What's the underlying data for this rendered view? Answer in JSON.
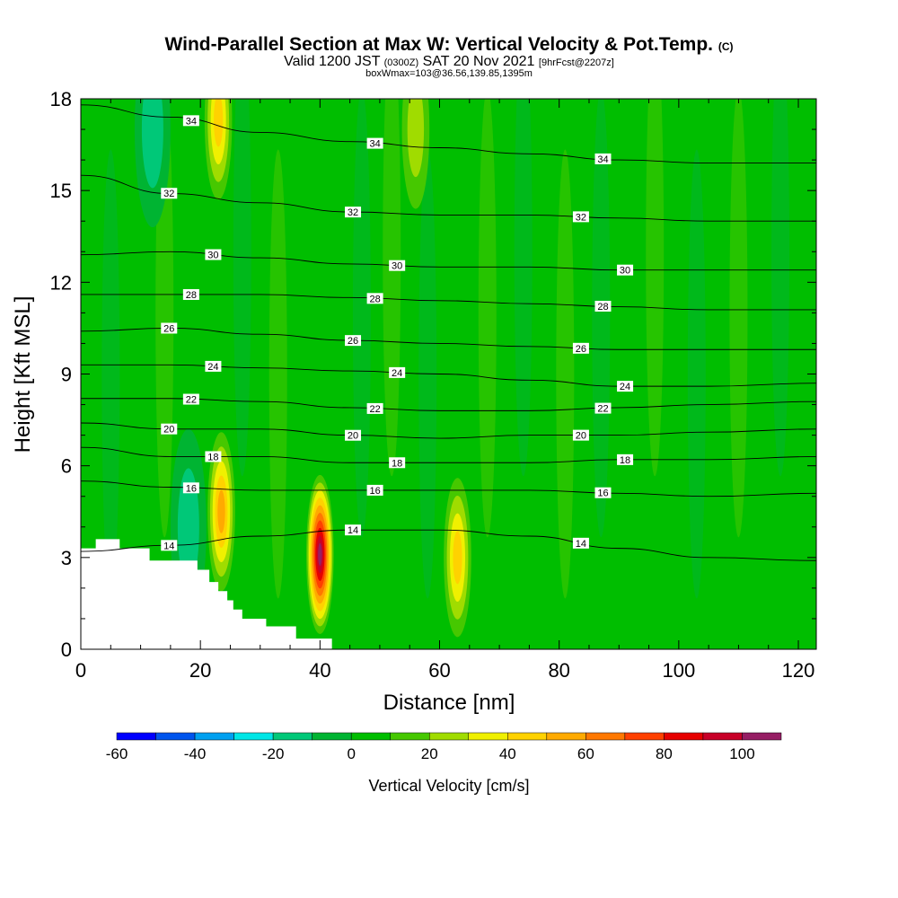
{
  "header": {
    "title": "Wind-Parallel Section at Max W: Vertical Velocity & Pot.Temp.",
    "title_units": "(C)",
    "valid_prefix": "Valid 1200 JST",
    "valid_z": "(0300Z)",
    "valid_date": "SAT 20 Nov 2021",
    "forecast": "[9hrFcst@2207z]",
    "box_info": "boxWmax=103@36.56,139.85,1395m"
  },
  "chart_data": {
    "type": "heatmap",
    "xlabel": "Distance [nm]",
    "ylabel": "Height [Kft MSL]",
    "xlim": [
      0,
      123
    ],
    "ylim": [
      0,
      18
    ],
    "x_ticks": [
      "0",
      "20",
      "40",
      "60",
      "80",
      "100",
      "120"
    ],
    "y_ticks": [
      "0",
      "3",
      "6",
      "9",
      "12",
      "15",
      "18"
    ],
    "grid": false,
    "colorbar": {
      "label": "Vertical Velocity [cm/s]",
      "tick_labels": [
        "-60",
        "-40",
        "-20",
        "0",
        "20",
        "40",
        "60",
        "80",
        "100"
      ],
      "bins": [
        -60,
        -50,
        -40,
        -30,
        -20,
        -10,
        0,
        10,
        20,
        30,
        40,
        50,
        60,
        70,
        80,
        90,
        100,
        110
      ],
      "colors": [
        "#0000ff",
        "#0055ee",
        "#00a0f0",
        "#00e6e6",
        "#00c878",
        "#00b432",
        "#00be00",
        "#46c800",
        "#a0dc00",
        "#f0f000",
        "#ffd200",
        "#ffaa00",
        "#ff7800",
        "#ff4000",
        "#e60000",
        "#c80028",
        "#961e64",
        "#5a0a8c"
      ]
    },
    "background_value": 5,
    "features": [
      {
        "x": 40.0,
        "y": 3.1,
        "max_w": 103
      },
      {
        "x": 23.5,
        "y": 4.5,
        "max_w": 45
      },
      {
        "x": 23.0,
        "y": 17.3,
        "max_w": 35
      },
      {
        "x": 63.0,
        "y": 3.0,
        "max_w": 40
      },
      {
        "x": 56.0,
        "y": 17.0,
        "max_w": 20
      },
      {
        "x": 12.0,
        "y": 17.0,
        "max_w": -20
      },
      {
        "x": 18.0,
        "y": 4.0,
        "max_w": -20
      }
    ],
    "terrain": [
      [
        0,
        3.3
      ],
      [
        2.5,
        3.3
      ],
      [
        2.5,
        3.6
      ],
      [
        6.5,
        3.6
      ],
      [
        6.5,
        3.3
      ],
      [
        11.5,
        3.3
      ],
      [
        11.5,
        2.9
      ],
      [
        19.5,
        2.9
      ],
      [
        19.5,
        2.6
      ],
      [
        21.5,
        2.6
      ],
      [
        21.5,
        2.2
      ],
      [
        23,
        2.2
      ],
      [
        23,
        1.9
      ],
      [
        24.5,
        1.9
      ],
      [
        24.5,
        1.6
      ],
      [
        25.5,
        1.6
      ],
      [
        25.5,
        1.3
      ],
      [
        27,
        1.3
      ],
      [
        27,
        1.0
      ],
      [
        31,
        1.0
      ],
      [
        31,
        0.75
      ],
      [
        36,
        0.75
      ],
      [
        36,
        0.35
      ],
      [
        42,
        0.35
      ],
      [
        42,
        0.0
      ]
    ],
    "isentropes_C": [
      {
        "label": "14",
        "y": [
          3.2,
          3.4,
          3.7,
          3.9,
          3.9,
          3.7,
          3.3,
          3.0,
          2.9
        ]
      },
      {
        "label": "16",
        "y": [
          5.5,
          5.3,
          5.2,
          5.2,
          5.2,
          5.2,
          5.1,
          5.0,
          5.1
        ]
      },
      {
        "label": "18",
        "y": [
          6.6,
          6.3,
          6.3,
          6.1,
          6.1,
          6.1,
          6.2,
          6.2,
          6.3
        ]
      },
      {
        "label": "20",
        "y": [
          7.4,
          7.2,
          7.2,
          7.0,
          6.9,
          7.0,
          7.0,
          7.1,
          7.2
        ]
      },
      {
        "label": "22",
        "y": [
          8.2,
          8.2,
          8.1,
          7.9,
          7.8,
          7.8,
          7.9,
          8.0,
          8.1
        ]
      },
      {
        "label": "24",
        "y": [
          9.3,
          9.3,
          9.2,
          9.1,
          9.0,
          8.8,
          8.6,
          8.6,
          8.7
        ]
      },
      {
        "label": "26",
        "y": [
          10.4,
          10.5,
          10.3,
          10.1,
          10.0,
          9.9,
          9.8,
          9.8,
          9.8
        ]
      },
      {
        "label": "28",
        "y": [
          11.6,
          11.6,
          11.6,
          11.5,
          11.4,
          11.3,
          11.2,
          11.1,
          11.1
        ]
      },
      {
        "label": "30",
        "y": [
          12.9,
          13.0,
          12.8,
          12.6,
          12.5,
          12.5,
          12.4,
          12.4,
          12.4
        ]
      },
      {
        "label": "32",
        "y": [
          15.5,
          14.9,
          14.6,
          14.3,
          14.2,
          14.2,
          14.1,
          14.0,
          14.0
        ]
      },
      {
        "label": "34",
        "y": [
          17.8,
          17.4,
          16.9,
          16.6,
          16.4,
          16.2,
          16.0,
          15.9,
          15.9
        ]
      }
    ],
    "isentrope_x": [
      0,
      15,
      30,
      45,
      60,
      75,
      90,
      105,
      123
    ]
  }
}
